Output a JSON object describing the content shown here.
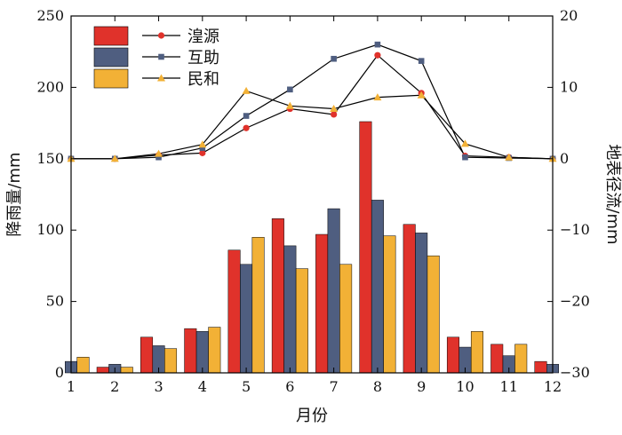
{
  "chart_data": {
    "type": "bar+line",
    "x": [
      1,
      2,
      3,
      4,
      5,
      6,
      7,
      8,
      9,
      10,
      11,
      12
    ],
    "xlabel": "月份",
    "ylabel_left": "降雨量/mm",
    "ylabel_right": "地表径流/mm",
    "ylim_left": [
      0,
      250
    ],
    "yticks_left": [
      0,
      50,
      100,
      150,
      200,
      250
    ],
    "ylim_right": [
      -30,
      20
    ],
    "yticks_right": [
      -30,
      -20,
      -10,
      0,
      10,
      20
    ],
    "grid": false,
    "legend_placement": "top-left",
    "bar_series": [
      {
        "name": "湟源",
        "color": "#e0322b",
        "values": [
          0,
          4,
          25,
          31,
          86,
          108,
          97,
          176,
          104,
          25,
          20,
          8
        ]
      },
      {
        "name": "互助",
        "color": "#4f5e80",
        "values": [
          8,
          6,
          19,
          29,
          76,
          89,
          115,
          121,
          98,
          18,
          12,
          6
        ]
      },
      {
        "name": "民和",
        "color": "#f2b136",
        "values": [
          11,
          4,
          17,
          32,
          95,
          73,
          76,
          96,
          82,
          29,
          20,
          0
        ]
      }
    ],
    "line_series": [
      {
        "name": "湟源",
        "color": "#e0322b",
        "marker": "circle",
        "values": [
          0,
          0,
          0.5,
          0.8,
          4.3,
          7,
          6.2,
          14.5,
          9.2,
          0.4,
          0.2,
          0
        ]
      },
      {
        "name": "互助",
        "color": "#4f5e80",
        "marker": "square",
        "values": [
          0,
          0,
          0.2,
          1.5,
          6,
          9.7,
          14,
          16,
          13.7,
          0.2,
          0.1,
          0
        ]
      },
      {
        "name": "民和",
        "color": "#f2b136",
        "marker": "triangle",
        "values": [
          0,
          0,
          0.7,
          2,
          9.5,
          7.4,
          7,
          8.6,
          8.9,
          2.1,
          0.2,
          0
        ]
      }
    ]
  }
}
